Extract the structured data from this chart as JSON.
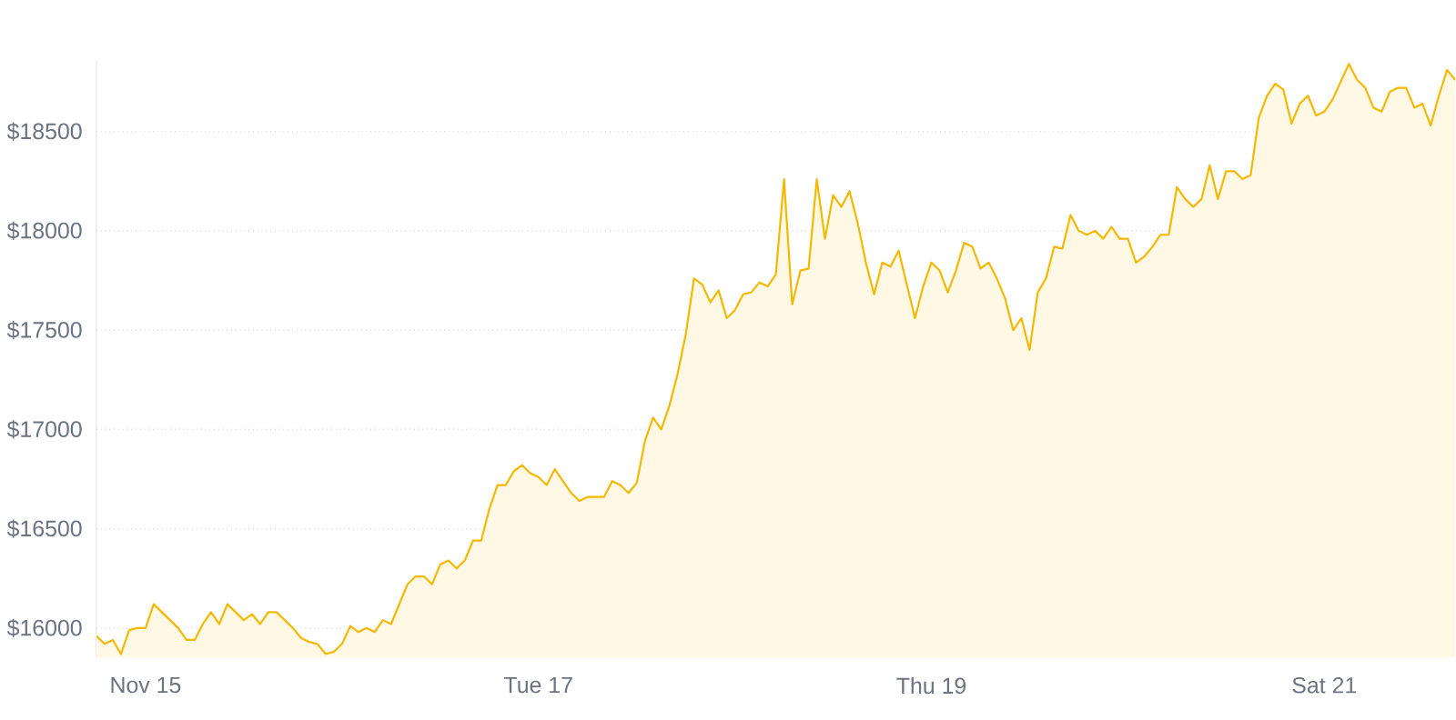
{
  "chart_data": {
    "type": "area",
    "color": "#f5b800",
    "categories": [
      null,
      null,
      null,
      null,
      null,
      null,
      "Nov 15",
      null,
      null,
      null,
      null,
      null,
      null,
      null,
      null,
      null,
      null,
      null,
      null,
      null,
      null,
      null,
      null,
      null,
      null,
      null,
      null,
      null,
      null,
      null,
      null,
      null,
      null,
      null,
      null,
      null,
      null,
      null,
      null,
      null,
      null,
      null,
      null,
      null,
      null,
      null,
      null,
      null,
      null,
      null,
      null,
      null,
      null,
      null,
      "Tue 17",
      null,
      null,
      null,
      null,
      null,
      null,
      null,
      null,
      null,
      null,
      null,
      null,
      null,
      null,
      null,
      null,
      null,
      null,
      null,
      null,
      null,
      null,
      null,
      null,
      null,
      null,
      null,
      null,
      null,
      null,
      null,
      null,
      null,
      null,
      null,
      null,
      null,
      null,
      null,
      null,
      null,
      null,
      null,
      null,
      null,
      null,
      null,
      "Thu 19",
      null,
      null,
      null,
      null,
      null,
      null,
      null,
      null,
      null,
      null,
      null,
      null,
      null,
      null,
      null,
      null,
      null,
      null,
      null,
      null,
      null,
      null,
      null,
      null,
      null,
      null,
      null,
      null,
      null,
      null,
      null,
      null,
      null,
      null,
      null,
      null,
      null,
      null,
      null,
      null,
      null,
      null,
      null,
      null,
      null,
      null,
      null,
      "Sat 21",
      null,
      null,
      null,
      null,
      null,
      null,
      null,
      null,
      null,
      null,
      null,
      null,
      null,
      null,
      null,
      null
    ],
    "values": [
      15960,
      15920,
      15940,
      15870,
      15990,
      16000,
      16000,
      16120,
      16080,
      16040,
      16000,
      15940,
      15940,
      16020,
      16080,
      16020,
      16120,
      16080,
      16040,
      16070,
      16020,
      16080,
      16080,
      16040,
      16000,
      15950,
      15930,
      15920,
      15870,
      15880,
      15920,
      16010,
      15980,
      16000,
      15980,
      16040,
      16020,
      16120,
      16220,
      16260,
      16260,
      16220,
      16320,
      16340,
      16300,
      16340,
      16440,
      16440,
      16600,
      16720,
      16720,
      16790,
      16820,
      16780,
      16760,
      16720,
      16800,
      16740,
      16680,
      16640,
      16660,
      16660,
      16660,
      16740,
      16720,
      16680,
      16730,
      16940,
      17060,
      17000,
      17120,
      17280,
      17480,
      17760,
      17730,
      17640,
      17700,
      17560,
      17600,
      17680,
      17690,
      17740,
      17720,
      17780,
      18260,
      17630,
      17800,
      17810,
      18260,
      17960,
      18180,
      18120,
      18200,
      18040,
      17840,
      17680,
      17840,
      17820,
      17900,
      17730,
      17560,
      17720,
      17840,
      17800,
      17690,
      17800,
      17940,
      17920,
      17810,
      17840,
      17760,
      17660,
      17500,
      17560,
      17400,
      17690,
      17760,
      17920,
      17910,
      18080,
      18000,
      17980,
      18000,
      17960,
      18020,
      17960,
      17960,
      17840,
      17870,
      17920,
      17980,
      17980,
      18220,
      18160,
      18120,
      18160,
      18330,
      18160,
      18300,
      18300,
      18260,
      18280,
      18570,
      18680,
      18740,
      18710,
      18540,
      18640,
      18680,
      18580,
      18600,
      18660,
      18750,
      18840,
      18760,
      18720,
      18620,
      18600,
      18700,
      18720,
      18720,
      18620,
      18640,
      18530,
      18680,
      18810,
      18760
    ],
    "ylim": [
      15850,
      18860
    ],
    "yticks": [
      {
        "value": 16000,
        "label": "$16000"
      },
      {
        "value": 16500,
        "label": "$16500"
      },
      {
        "value": 17000,
        "label": "$17000"
      },
      {
        "value": 17500,
        "label": "$17500"
      },
      {
        "value": 18000,
        "label": "$18000"
      },
      {
        "value": 18500,
        "label": "$18500"
      }
    ],
    "grid": "y"
  }
}
